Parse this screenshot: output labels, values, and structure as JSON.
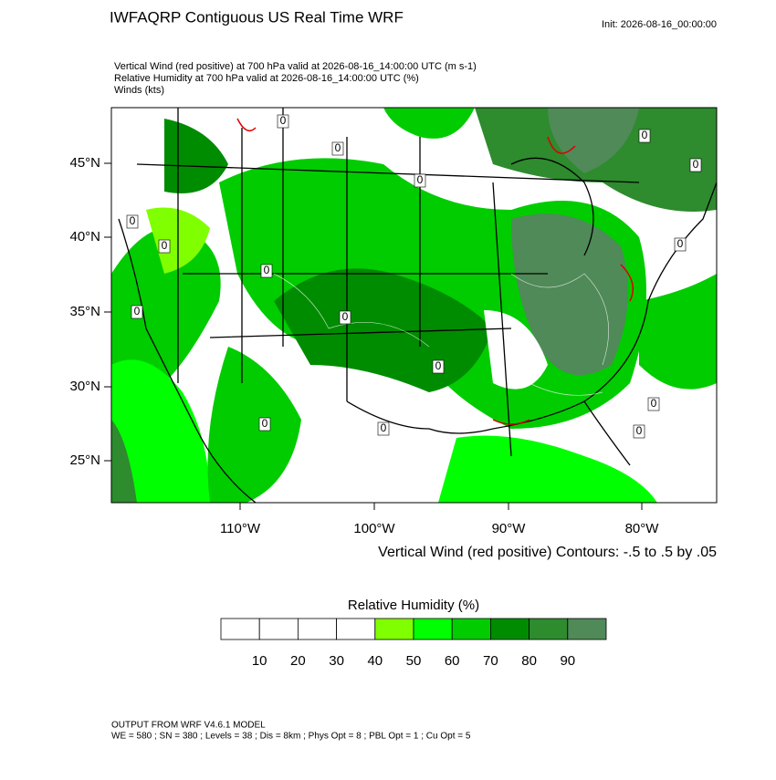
{
  "header": {
    "title": "IWFAQRP Contiguous US Real Time WRF",
    "init": "Init: 2026-08-16_00:00:00"
  },
  "fields": [
    "Vertical Wind (red positive) at 700 hPa valid at 2026-08-16_14:00:00 UTC   (m s-1)",
    "Relative Humidity at 700 hPa valid at 2026-08-16_14:00:00 UTC   (%)",
    "Winds   (kts)"
  ],
  "map": {
    "lat_labels": [
      "45°N",
      "40°N",
      "35°N",
      "30°N",
      "25°N"
    ],
    "lon_labels": [
      "110°W",
      "100°W",
      "90°W",
      "80°W"
    ],
    "contour_labels": [
      "0",
      "0",
      "0",
      "0",
      "0",
      "0",
      "0",
      "0",
      "0",
      "0",
      "0",
      "0",
      "0",
      "0",
      "0",
      "0"
    ],
    "contour_note": "Vertical Wind (red positive) Contours: -.5 to .5 by .05"
  },
  "colorbar": {
    "title": "Relative Humidity  (%)",
    "colors": [
      "#ffffff",
      "#ffffff",
      "#ffffff",
      "#ffffff",
      "#80ff00",
      "#00ff00",
      "#00cc00",
      "#008c00",
      "#2e8b2e",
      "#4f8a58"
    ],
    "labels": [
      "10",
      "20",
      "30",
      "40",
      "50",
      "60",
      "70",
      "80",
      "90"
    ]
  },
  "footer": {
    "model": "OUTPUT FROM WRF V4.6.1 MODEL",
    "settings": "WE = 580 ; SN = 380 ; Levels = 38 ; Dis = 8km ; Phys Opt = 8 ; PBL Opt = 1 ; Cu Opt = 5"
  }
}
